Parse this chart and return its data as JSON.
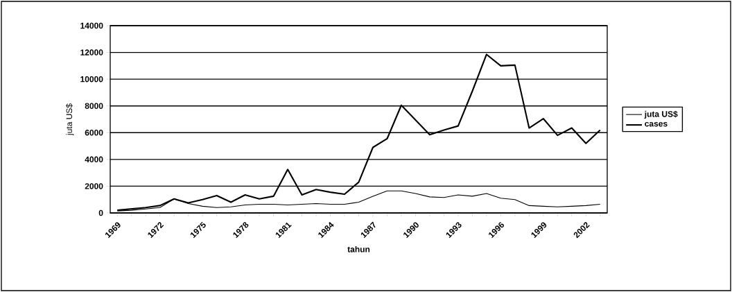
{
  "chart_data": {
    "type": "line",
    "xlabel": "tahun",
    "ylabel": "juta US$",
    "categories": [
      "1969",
      null,
      null,
      "1972",
      null,
      null,
      "1975",
      null,
      null,
      "1978",
      null,
      null,
      "1981",
      null,
      null,
      "1984",
      null,
      null,
      "1987",
      null,
      null,
      "1990",
      null,
      null,
      "1993",
      null,
      null,
      "1996",
      null,
      null,
      "1999",
      null,
      null,
      "2002",
      null
    ],
    "series": [
      {
        "name": "juta US$",
        "color": "#000000",
        "values": [
          150,
          200,
          300,
          400,
          1050,
          700,
          500,
          400,
          450,
          600,
          650,
          650,
          600,
          650,
          700,
          650,
          650,
          800,
          1250,
          1650,
          1650,
          1450,
          1200,
          1150,
          1350,
          1250,
          1450,
          1100,
          1000,
          550,
          500,
          450,
          500,
          550,
          650
        ]
      },
      {
        "name": "cases",
        "color": "#000000",
        "values": [
          200,
          300,
          400,
          550,
          1050,
          750,
          1000,
          1300,
          800,
          1350,
          1050,
          1250,
          3250,
          1350,
          1750,
          1550,
          1400,
          2300,
          4900,
          5550,
          8050,
          6950,
          5850,
          6200,
          6500,
          9100,
          11850,
          11000,
          11050,
          6350,
          7050,
          5800,
          6350,
          5200,
          6200
        ]
      }
    ],
    "ylim": [
      0,
      14000
    ],
    "yticks": [
      0,
      2000,
      4000,
      6000,
      8000,
      10000,
      12000,
      14000
    ],
    "grid": "y",
    "legend": "right"
  }
}
